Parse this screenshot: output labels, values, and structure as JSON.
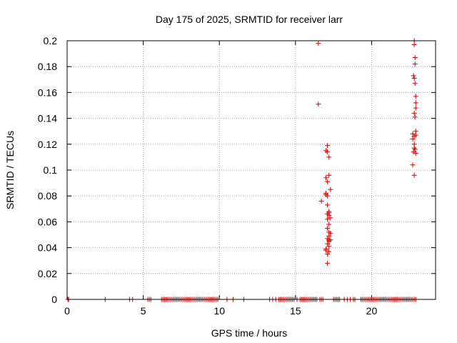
{
  "chart_data": {
    "type": "scatter",
    "title": "Day 175 of 2025, SRMTID for receiver larr",
    "xlabel": "GPS time / hours",
    "ylabel": "SRMTID / TECUs",
    "xlim": [
      0,
      24.2
    ],
    "ylim": [
      0,
      0.2
    ],
    "xticks": [
      0,
      5,
      10,
      15,
      20
    ],
    "xtick_labels": [
      "0",
      "5",
      "10",
      "15",
      "20"
    ],
    "yticks": [
      0,
      0.02,
      0.04,
      0.06,
      0.08,
      0.1,
      0.12,
      0.14,
      0.16,
      0.18,
      0.2
    ],
    "ytick_labels": [
      "0",
      "0.02",
      "0.04",
      "0.06",
      "0.08",
      "0.1",
      "0.12",
      "0.14",
      "0.16",
      "0.18",
      "0.2"
    ],
    "grid": true,
    "marker": "+",
    "marker_color": "#cc0000",
    "series": [
      {
        "x": [
          0.05,
          0.1,
          2.5,
          4.1,
          4.3,
          5.3,
          5.4,
          5.5,
          6.2,
          6.3,
          6.4,
          6.5,
          6.6,
          6.7,
          6.8,
          6.9,
          7.0,
          7.1,
          7.2,
          7.3,
          7.4,
          7.5,
          7.6,
          7.7,
          7.8,
          7.9,
          8.0,
          8.1,
          8.2,
          8.3,
          8.4,
          8.5,
          8.6,
          8.7,
          8.8,
          8.9,
          9.0,
          9.1,
          9.2,
          9.3,
          9.4,
          9.5,
          9.6,
          9.7,
          9.8,
          9.9,
          10.5,
          10.9,
          11.6,
          13.3,
          13.5,
          13.7,
          13.9,
          14.0,
          14.1,
          14.2,
          14.3,
          14.4,
          14.5,
          14.6,
          14.7,
          14.8,
          14.9,
          15.1,
          15.3,
          15.4,
          15.5,
          15.6,
          15.7,
          15.8,
          15.9,
          16.0,
          16.1,
          16.2,
          16.3,
          16.4,
          16.6,
          16.7,
          16.8,
          17.5,
          17.6,
          17.7,
          17.8,
          17.9,
          18.2,
          18.4,
          18.6,
          18.8,
          18.9,
          19.3,
          19.4,
          19.5,
          19.6,
          19.7,
          19.8,
          19.9,
          20.0,
          20.1,
          20.2,
          20.3,
          20.4,
          20.5,
          20.6,
          20.7,
          20.8,
          20.9,
          21.0,
          21.1,
          21.2,
          21.3,
          21.4,
          21.5,
          21.6,
          21.7,
          21.8,
          21.9,
          22.0,
          22.1,
          22.2,
          22.3,
          22.4,
          22.5,
          22.6,
          22.7,
          22.8,
          22.9,
          16.5,
          16.5,
          16.7,
          17.0,
          17.1,
          17.1,
          17.0,
          17.1,
          17.2,
          17.3,
          17.2,
          17.0,
          17.1,
          17.0,
          17.1,
          17.2,
          17.1,
          17.2,
          17.3,
          17.2,
          17.1,
          17.2,
          17.3,
          17.2,
          17.1,
          17.3,
          17.2,
          17.1,
          17.2,
          17.0,
          17.2,
          17.1,
          17.0,
          17.1,
          17.2,
          17.1,
          17.2,
          22.8,
          22.8,
          22.85,
          22.85,
          22.75,
          22.8,
          22.85,
          22.9,
          22.9,
          22.9,
          22.8,
          22.85,
          22.9,
          22.7,
          22.8,
          22.7,
          22.9,
          22.8,
          22.85,
          22.9,
          22.8,
          22.7,
          22.8,
          22.75
        ],
        "y": [
          0,
          0,
          0,
          0,
          0,
          0,
          0,
          0,
          0,
          0,
          0,
          0,
          0,
          0,
          0,
          0,
          0,
          0,
          0,
          0,
          0,
          0,
          0,
          0,
          0,
          0,
          0,
          0,
          0,
          0,
          0,
          0,
          0,
          0,
          0,
          0,
          0,
          0,
          0,
          0,
          0,
          0,
          0,
          0,
          0,
          0,
          0,
          0,
          0,
          0,
          0,
          0,
          0,
          0,
          0,
          0,
          0,
          0,
          0,
          0,
          0,
          0,
          0,
          0,
          0,
          0,
          0,
          0,
          0,
          0,
          0,
          0,
          0,
          0,
          0,
          0,
          0,
          0,
          0,
          0,
          0,
          0,
          0,
          0,
          0,
          0,
          0,
          0,
          0,
          0,
          0,
          0,
          0,
          0,
          0,
          0,
          0,
          0,
          0,
          0,
          0,
          0,
          0,
          0,
          0,
          0,
          0,
          0,
          0,
          0,
          0,
          0,
          0,
          0,
          0,
          0,
          0,
          0,
          0,
          0,
          0,
          0,
          0,
          0,
          0,
          0,
          0.198,
          0.151,
          0.076,
          0.081,
          0.08,
          0.119,
          0.115,
          0.114,
          0.11,
          0.085,
          0.096,
          0.094,
          0.091,
          0.082,
          0.073,
          0.068,
          0.066,
          0.065,
          0.063,
          0.058,
          0.055,
          0.052,
          0.051,
          0.049,
          0.047,
          0.046,
          0.045,
          0.043,
          0.041,
          0.038,
          0.037,
          0.035,
          0.039,
          0.028,
          0.046,
          0.062,
          0.067,
          0.2,
          0.197,
          0.187,
          0.182,
          0.173,
          0.171,
          0.167,
          0.157,
          0.152,
          0.148,
          0.144,
          0.141,
          0.13,
          0.128,
          0.126,
          0.124,
          0.127,
          0.12,
          0.116,
          0.113,
          0.117,
          0.104,
          0.096,
          0.114
        ]
      }
    ]
  }
}
